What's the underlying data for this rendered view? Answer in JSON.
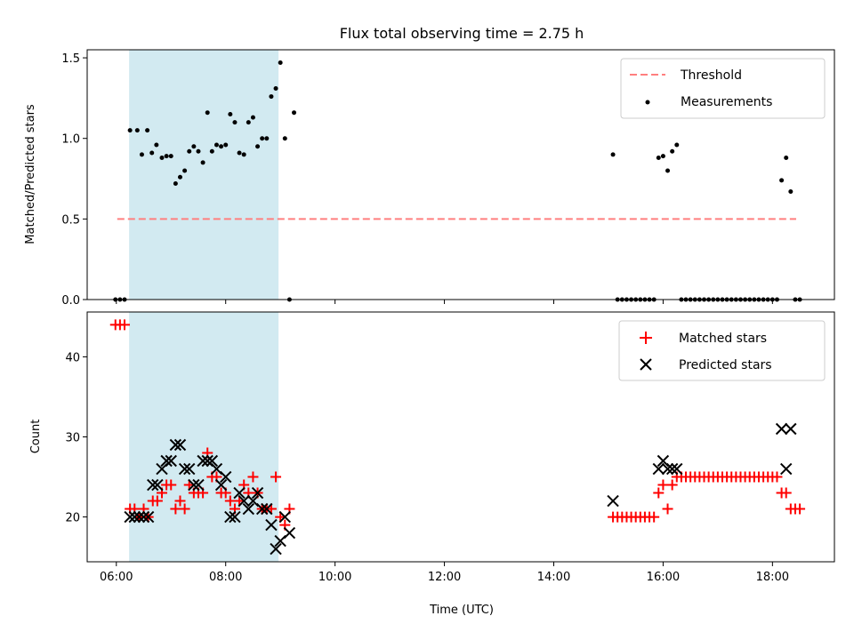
{
  "chart_data": {
    "title": "Flux total observing time = 2.75 h",
    "shaded_interval": [
      "06:14",
      "08:58"
    ],
    "shade_color": "#add8e6",
    "xlabel": "Time (UTC)",
    "xlim": [
      "05:28",
      "19:08"
    ],
    "x_ticks": [
      "06:00",
      "08:00",
      "10:00",
      "12:00",
      "14:00",
      "16:00",
      "18:00"
    ],
    "panels": [
      {
        "type": "scatter",
        "ylabel": "Matched/Predicted stars",
        "ylim": [
          0,
          1.55
        ],
        "y_ticks": [
          "0.0",
          "0.5",
          "1.0",
          "1.5"
        ],
        "threshold": {
          "name": "Threshold",
          "value": 0.5,
          "x_range": [
            "06:01",
            "18:26"
          ],
          "color": "#ff7f7f",
          "style": "dashed"
        },
        "series": [
          {
            "name": "Measurements",
            "color": "#000000",
            "marker": "dot",
            "points": [
              [
                "05:59",
                0.0
              ],
              [
                "06:04",
                0.0
              ],
              [
                "06:09",
                0.0
              ],
              [
                "06:15",
                1.05
              ],
              [
                "06:23",
                1.05
              ],
              [
                "06:28",
                0.9
              ],
              [
                "06:34",
                1.05
              ],
              [
                "06:39",
                0.91
              ],
              [
                "06:44",
                0.96
              ],
              [
                "06:50",
                0.88
              ],
              [
                "06:55",
                0.89
              ],
              [
                "07:00",
                0.89
              ],
              [
                "07:05",
                0.72
              ],
              [
                "07:10",
                0.76
              ],
              [
                "07:15",
                0.8
              ],
              [
                "07:20",
                0.92
              ],
              [
                "07:25",
                0.95
              ],
              [
                "07:30",
                0.92
              ],
              [
                "07:35",
                0.85
              ],
              [
                "07:40",
                1.16
              ],
              [
                "07:45",
                0.92
              ],
              [
                "07:50",
                0.96
              ],
              [
                "07:55",
                0.95
              ],
              [
                "08:00",
                0.96
              ],
              [
                "08:05",
                1.15
              ],
              [
                "08:10",
                1.1
              ],
              [
                "08:15",
                0.91
              ],
              [
                "08:20",
                0.9
              ],
              [
                "08:25",
                1.1
              ],
              [
                "08:30",
                1.13
              ],
              [
                "08:35",
                0.95
              ],
              [
                "08:40",
                1.0
              ],
              [
                "08:45",
                1.0
              ],
              [
                "08:50",
                1.26
              ],
              [
                "08:55",
                1.31
              ],
              [
                "09:00",
                1.47
              ],
              [
                "09:05",
                1.0
              ],
              [
                "09:10",
                0.0
              ],
              [
                "09:15",
                1.16
              ],
              [
                "15:05",
                0.9
              ],
              [
                "15:10",
                0.0
              ],
              [
                "15:15",
                0.0
              ],
              [
                "15:20",
                0.0
              ],
              [
                "15:25",
                0.0
              ],
              [
                "15:30",
                0.0
              ],
              [
                "15:35",
                0.0
              ],
              [
                "15:40",
                0.0
              ],
              [
                "15:45",
                0.0
              ],
              [
                "15:50",
                0.0
              ],
              [
                "15:55",
                0.88
              ],
              [
                "16:00",
                0.89
              ],
              [
                "16:05",
                0.8
              ],
              [
                "16:10",
                0.92
              ],
              [
                "16:15",
                0.96
              ],
              [
                "16:20",
                0.0
              ],
              [
                "16:25",
                0.0
              ],
              [
                "16:30",
                0.0
              ],
              [
                "16:35",
                0.0
              ],
              [
                "16:40",
                0.0
              ],
              [
                "16:45",
                0.0
              ],
              [
                "16:50",
                0.0
              ],
              [
                "16:55",
                0.0
              ],
              [
                "17:00",
                0.0
              ],
              [
                "17:05",
                0.0
              ],
              [
                "17:10",
                0.0
              ],
              [
                "17:15",
                0.0
              ],
              [
                "17:20",
                0.0
              ],
              [
                "17:25",
                0.0
              ],
              [
                "17:30",
                0.0
              ],
              [
                "17:35",
                0.0
              ],
              [
                "17:40",
                0.0
              ],
              [
                "17:45",
                0.0
              ],
              [
                "17:50",
                0.0
              ],
              [
                "17:55",
                0.0
              ],
              [
                "18:00",
                0.0
              ],
              [
                "18:05",
                0.0
              ],
              [
                "18:10",
                0.74
              ],
              [
                "18:15",
                0.88
              ],
              [
                "18:20",
                0.67
              ],
              [
                "18:25",
                0.0
              ],
              [
                "18:30",
                0.0
              ]
            ]
          }
        ],
        "legend": "top-right"
      },
      {
        "type": "scatter",
        "ylabel": "Count",
        "ylim": [
          14.4,
          45.6
        ],
        "y_ticks": [
          "20",
          "30",
          "40"
        ],
        "series": [
          {
            "name": "Matched stars",
            "color": "#ff0000",
            "marker": "plus",
            "points": [
              [
                "05:59",
                44
              ],
              [
                "06:04",
                44
              ],
              [
                "06:09",
                44
              ],
              [
                "06:15",
                21
              ],
              [
                "06:20",
                21
              ],
              [
                "06:25",
                20
              ],
              [
                "06:30",
                21
              ],
              [
                "06:35",
                20
              ],
              [
                "06:40",
                22
              ],
              [
                "06:45",
                22
              ],
              [
                "06:50",
                23
              ],
              [
                "06:55",
                24
              ],
              [
                "07:00",
                24
              ],
              [
                "07:05",
                21
              ],
              [
                "07:10",
                22
              ],
              [
                "07:15",
                21
              ],
              [
                "07:20",
                24
              ],
              [
                "07:25",
                23
              ],
              [
                "07:30",
                23
              ],
              [
                "07:35",
                23
              ],
              [
                "07:40",
                28
              ],
              [
                "07:45",
                25
              ],
              [
                "07:50",
                25
              ],
              [
                "07:55",
                23
              ],
              [
                "08:00",
                23
              ],
              [
                "08:05",
                22
              ],
              [
                "08:10",
                21
              ],
              [
                "08:15",
                22
              ],
              [
                "08:20",
                24
              ],
              [
                "08:25",
                23
              ],
              [
                "08:30",
                25
              ],
              [
                "08:35",
                23
              ],
              [
                "08:40",
                21
              ],
              [
                "08:45",
                21
              ],
              [
                "08:50",
                21
              ],
              [
                "08:55",
                25
              ],
              [
                "09:00",
                20
              ],
              [
                "09:05",
                19
              ],
              [
                "09:10",
                21
              ],
              [
                "15:05",
                20
              ],
              [
                "15:10",
                20
              ],
              [
                "15:15",
                20
              ],
              [
                "15:20",
                20
              ],
              [
                "15:25",
                20
              ],
              [
                "15:30",
                20
              ],
              [
                "15:35",
                20
              ],
              [
                "15:40",
                20
              ],
              [
                "15:45",
                20
              ],
              [
                "15:50",
                20
              ],
              [
                "15:55",
                23
              ],
              [
                "16:00",
                24
              ],
              [
                "16:05",
                21
              ],
              [
                "16:10",
                24
              ],
              [
                "16:15",
                25
              ],
              [
                "16:20",
                25
              ],
              [
                "16:25",
                25
              ],
              [
                "16:30",
                25
              ],
              [
                "16:35",
                25
              ],
              [
                "16:40",
                25
              ],
              [
                "16:45",
                25
              ],
              [
                "16:50",
                25
              ],
              [
                "16:55",
                25
              ],
              [
                "17:00",
                25
              ],
              [
                "17:05",
                25
              ],
              [
                "17:10",
                25
              ],
              [
                "17:15",
                25
              ],
              [
                "17:20",
                25
              ],
              [
                "17:25",
                25
              ],
              [
                "17:30",
                25
              ],
              [
                "17:35",
                25
              ],
              [
                "17:40",
                25
              ],
              [
                "17:45",
                25
              ],
              [
                "17:50",
                25
              ],
              [
                "17:55",
                25
              ],
              [
                "18:00",
                25
              ],
              [
                "18:05",
                25
              ],
              [
                "18:10",
                23
              ],
              [
                "18:15",
                23
              ],
              [
                "18:20",
                21
              ],
              [
                "18:25",
                21
              ],
              [
                "18:30",
                21
              ]
            ]
          },
          {
            "name": "Predicted stars",
            "color": "#000000",
            "marker": "x",
            "points": [
              [
                "06:15",
                20
              ],
              [
                "06:20",
                20
              ],
              [
                "06:25",
                20
              ],
              [
                "06:30",
                20
              ],
              [
                "06:35",
                20
              ],
              [
                "06:40",
                24
              ],
              [
                "06:45",
                24
              ],
              [
                "06:50",
                26
              ],
              [
                "06:55",
                27
              ],
              [
                "07:00",
                27
              ],
              [
                "07:05",
                29
              ],
              [
                "07:10",
                29
              ],
              [
                "07:15",
                26
              ],
              [
                "07:20",
                26
              ],
              [
                "07:25",
                24
              ],
              [
                "07:30",
                24
              ],
              [
                "07:35",
                27
              ],
              [
                "07:40",
                27
              ],
              [
                "07:45",
                27
              ],
              [
                "07:50",
                26
              ],
              [
                "07:55",
                24
              ],
              [
                "08:00",
                25
              ],
              [
                "08:05",
                20
              ],
              [
                "08:10",
                20
              ],
              [
                "08:15",
                23
              ],
              [
                "08:20",
                22
              ],
              [
                "08:25",
                21
              ],
              [
                "08:30",
                22
              ],
              [
                "08:35",
                23
              ],
              [
                "08:40",
                21
              ],
              [
                "08:45",
                21
              ],
              [
                "08:50",
                19
              ],
              [
                "08:55",
                16
              ],
              [
                "09:00",
                17
              ],
              [
                "09:05",
                20
              ],
              [
                "09:10",
                18
              ],
              [
                "15:05",
                22
              ],
              [
                "15:55",
                26
              ],
              [
                "16:00",
                27
              ],
              [
                "16:05",
                26
              ],
              [
                "16:10",
                26
              ],
              [
                "16:15",
                26
              ],
              [
                "18:10",
                31
              ],
              [
                "18:15",
                26
              ],
              [
                "18:20",
                31
              ]
            ]
          }
        ],
        "legend": "top-right"
      }
    ]
  }
}
